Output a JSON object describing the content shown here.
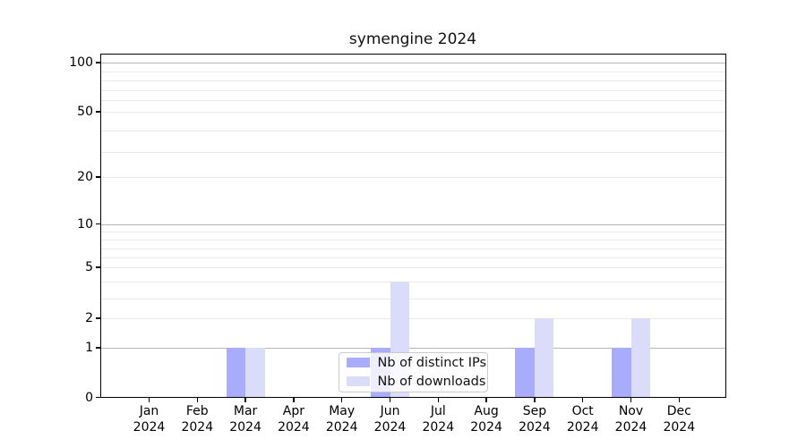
{
  "title": "symengine 2024",
  "chart_data": {
    "type": "bar",
    "title": "symengine 2024",
    "categories": [
      "Jan",
      "Feb",
      "Mar",
      "Apr",
      "May",
      "Jun",
      "Jul",
      "Aug",
      "Sep",
      "Oct",
      "Nov",
      "Dec"
    ],
    "x_tick_year": "2024",
    "series": [
      {
        "name": "Nb of distinct IPs",
        "color": "#a8acfa",
        "values": [
          0,
          0,
          1,
          0,
          0,
          1,
          0,
          0,
          1,
          0,
          1,
          0
        ]
      },
      {
        "name": "Nb of downloads",
        "color": "#dadcf9",
        "values": [
          0,
          0,
          1,
          0,
          0,
          4,
          0,
          0,
          2,
          0,
          2,
          0
        ]
      }
    ],
    "y_axis": {
      "ticks": [
        0,
        1,
        2,
        5,
        10,
        20,
        50,
        100
      ],
      "major_grid_values": [
        1,
        10,
        100
      ],
      "soft_grid_values": [
        2,
        3,
        4,
        5,
        6,
        7,
        8,
        9,
        20,
        30,
        40,
        50,
        60,
        70,
        80,
        90
      ],
      "scale": "log-like with zero baseline",
      "ylim": [
        0,
        100
      ]
    },
    "grid": true,
    "legend": {
      "position": "lower center",
      "items": [
        {
          "label": "Nb of distinct IPs",
          "color": "#a8acfa"
        },
        {
          "label": "Nb of downloads",
          "color": "#dadcf9"
        }
      ]
    }
  }
}
